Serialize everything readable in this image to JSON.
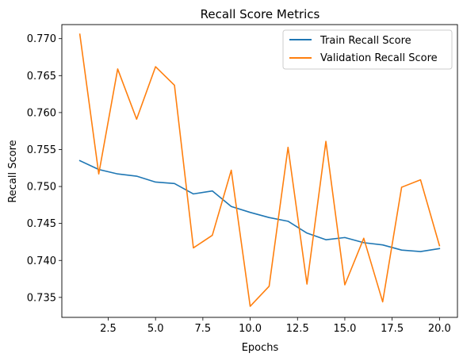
{
  "chart_data": {
    "type": "line",
    "title": "Recall Score Metrics",
    "xlabel": "Epochs",
    "ylabel": "Recall Score",
    "xlim": [
      0.05,
      20.95
    ],
    "ylim": [
      0.7323,
      0.7719
    ],
    "xticks": [
      2.5,
      5.0,
      7.5,
      10.0,
      12.5,
      15.0,
      17.5,
      20.0
    ],
    "xtick_labels": [
      "2.5",
      "5.0",
      "7.5",
      "10.0",
      "12.5",
      "15.0",
      "17.5",
      "20.0"
    ],
    "yticks": [
      0.735,
      0.74,
      0.745,
      0.75,
      0.755,
      0.76,
      0.765,
      0.77
    ],
    "ytick_labels": [
      "0.735",
      "0.740",
      "0.745",
      "0.750",
      "0.755",
      "0.760",
      "0.765",
      "0.770"
    ],
    "grid": false,
    "legend_position": "upper right",
    "x": [
      1,
      2,
      3,
      4,
      5,
      6,
      7,
      8,
      9,
      10,
      11,
      12,
      13,
      14,
      15,
      16,
      17,
      18,
      19,
      20
    ],
    "series": [
      {
        "name": "Train Recall Score",
        "color": "#1f77b4",
        "values": [
          0.7535,
          0.7523,
          0.7517,
          0.7514,
          0.7506,
          0.7504,
          0.749,
          0.7494,
          0.7473,
          0.7465,
          0.7458,
          0.7453,
          0.7437,
          0.7428,
          0.7431,
          0.7424,
          0.7421,
          0.7414,
          0.7412,
          0.7416
        ]
      },
      {
        "name": "Validation Recall Score",
        "color": "#ff7f0e",
        "values": [
          0.7706,
          0.7517,
          0.7659,
          0.7591,
          0.7662,
          0.7637,
          0.7417,
          0.7434,
          0.7522,
          0.7338,
          0.7365,
          0.7553,
          0.7368,
          0.7561,
          0.7367,
          0.743,
          0.7344,
          0.7499,
          0.7509,
          0.742
        ]
      }
    ]
  }
}
